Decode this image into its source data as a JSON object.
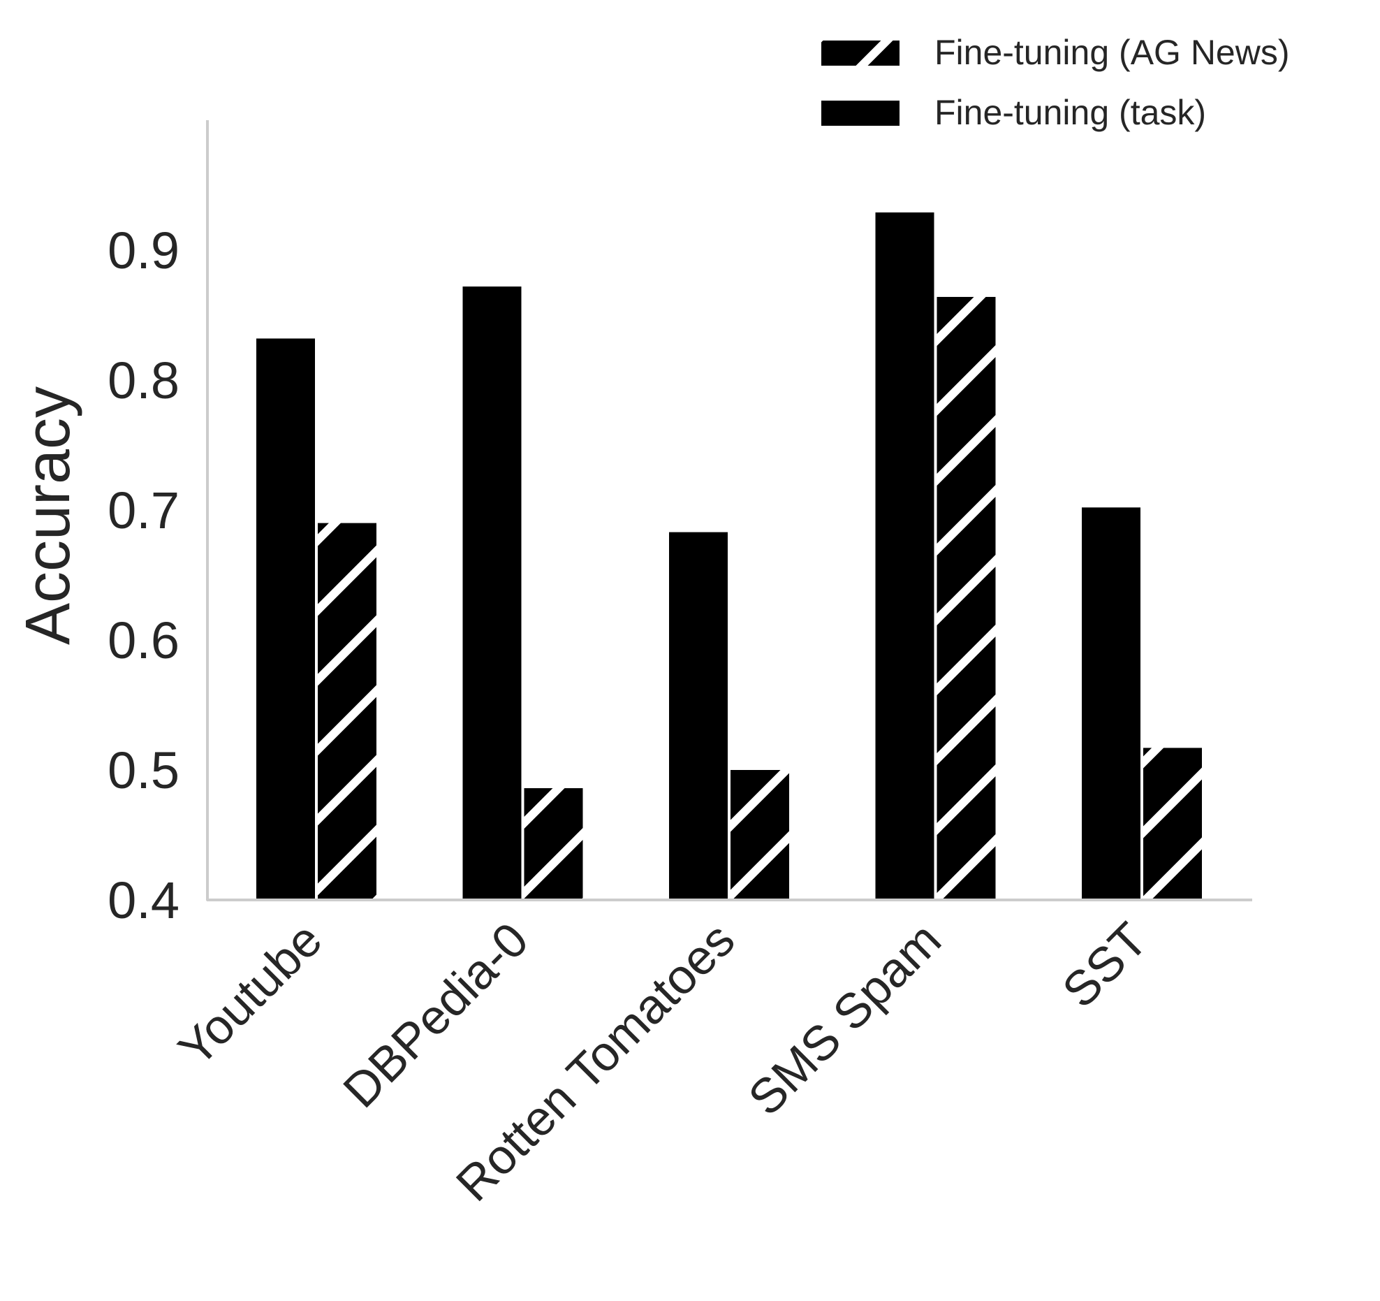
{
  "chart_data": {
    "type": "bar",
    "title": "",
    "xlabel": "",
    "ylabel": "Accuracy",
    "ylim": [
      0.4,
      1.0
    ],
    "yticks": [
      "0.4",
      "0.5",
      "0.6",
      "0.7",
      "0.8",
      "0.9"
    ],
    "grid": false,
    "legend_position": "top-right",
    "categories": [
      "Youtube",
      "DBPedia-0",
      "Rotten Tomatoes",
      "SMS Spam",
      "SST"
    ],
    "series": [
      {
        "name": "Fine-tuning (task)",
        "style": "solid",
        "color": "#000000",
        "values": [
          0.832,
          0.872,
          0.683,
          0.929,
          0.702
        ]
      },
      {
        "name": "Fine-tuning (AG News)",
        "style": "hatched",
        "color": "#000000",
        "values": [
          0.69,
          0.486,
          0.5,
          0.864,
          0.517
        ]
      }
    ],
    "legend_order": [
      1,
      0
    ]
  }
}
